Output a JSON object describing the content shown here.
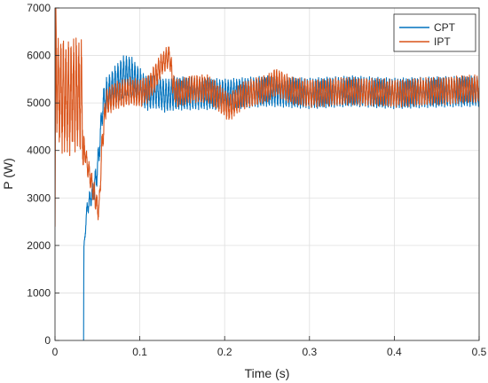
{
  "chart_data": {
    "type": "line",
    "title": "",
    "xlabel": "Time (s)",
    "ylabel": "P (W)",
    "xlim": [
      0,
      0.5
    ],
    "ylim": [
      0,
      7000
    ],
    "xticks": [
      0,
      0.1,
      0.2,
      0.3,
      0.4,
      0.5
    ],
    "xtick_labels": [
      "0",
      "0.1",
      "0.2",
      "0.3",
      "0.4",
      "0.5"
    ],
    "yticks": [
      0,
      1000,
      2000,
      3000,
      4000,
      5000,
      6000,
      7000
    ],
    "ytick_labels": [
      "0",
      "1000",
      "2000",
      "3000",
      "4000",
      "5000",
      "6000",
      "7000"
    ],
    "grid": true,
    "legend": {
      "position": "top-right",
      "entries": [
        "CPT",
        "IPT"
      ]
    },
    "series": [
      {
        "name": "CPT",
        "color": "#0072BD",
        "x": [
          0.0335,
          0.0337,
          0.034,
          0.036,
          0.038,
          0.04,
          0.043,
          0.046,
          0.05,
          0.053,
          0.056,
          0.06,
          0.065,
          0.07,
          0.075,
          0.08,
          0.085,
          0.09,
          0.095,
          0.1,
          0.105,
          0.11,
          0.115,
          0.12,
          0.125,
          0.13,
          0.14,
          0.15,
          0.17,
          0.2,
          0.25,
          0.3,
          0.35,
          0.4,
          0.45,
          0.5
        ],
        "y": [
          0,
          0,
          1900,
          2400,
          2800,
          2900,
          3050,
          3200,
          3600,
          4200,
          4900,
          5150,
          5250,
          5350,
          5450,
          5550,
          5580,
          5550,
          5450,
          5350,
          5250,
          5200,
          5230,
          5250,
          5200,
          5150,
          5200,
          5200,
          5200,
          5180,
          5250,
          5200,
          5250,
          5200,
          5230,
          5250
        ],
        "ripple": [
          0,
          0,
          60,
          150,
          150,
          200,
          220,
          250,
          300,
          300,
          350,
          380,
          400,
          420,
          440,
          450,
          450,
          440,
          420,
          400,
          380,
          370,
          370,
          370,
          370,
          360,
          360,
          360,
          350,
          330,
          330,
          330,
          330,
          330,
          330,
          330
        ]
      },
      {
        "name": "IPT",
        "color": "#D95319",
        "x": [
          0.0,
          0.001,
          0.002,
          0.005,
          0.01,
          0.015,
          0.02,
          0.025,
          0.03,
          0.0325,
          0.033,
          0.0335,
          0.034,
          0.035,
          0.038,
          0.042,
          0.046,
          0.05,
          0.052,
          0.055,
          0.06,
          0.07,
          0.08,
          0.09,
          0.1,
          0.11,
          0.12,
          0.125,
          0.13,
          0.135,
          0.14,
          0.145,
          0.16,
          0.18,
          0.2,
          0.205,
          0.22,
          0.25,
          0.26,
          0.28,
          0.3,
          0.35,
          0.4,
          0.45,
          0.5
        ],
        "y": [
          2400,
          7000,
          5400,
          5200,
          5150,
          5100,
          5150,
          5200,
          5150,
          5000,
          3700,
          3700,
          4200,
          4000,
          3700,
          3400,
          3100,
          2800,
          2750,
          4000,
          5000,
          5150,
          5200,
          5250,
          5200,
          5300,
          5600,
          5800,
          5900,
          6000,
          5300,
          5200,
          5300,
          5300,
          5000,
          4900,
          5150,
          5300,
          5450,
          5250,
          5200,
          5250,
          5200,
          5250,
          5300
        ],
        "ripple": [
          0,
          0,
          1000,
          1250,
          1250,
          1250,
          1250,
          1250,
          1250,
          1250,
          0,
          0,
          150,
          200,
          220,
          250,
          250,
          250,
          250,
          300,
          300,
          300,
          300,
          300,
          300,
          300,
          300,
          250,
          250,
          250,
          300,
          300,
          300,
          300,
          300,
          300,
          300,
          300,
          300,
          300,
          300,
          300,
          300,
          300,
          300
        ]
      }
    ]
  }
}
